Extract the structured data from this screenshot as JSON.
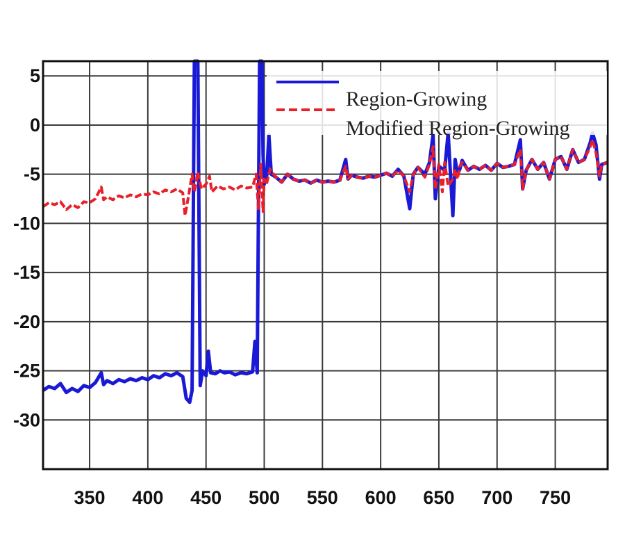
{
  "chart_data": {
    "type": "line",
    "title": "",
    "xlabel": "",
    "ylabel": "",
    "xlim": [
      310,
      795
    ],
    "ylim": [
      -35,
      6.5
    ],
    "grid": true,
    "legend_position": "top-right",
    "x_ticks": [
      350,
      400,
      450,
      500,
      550,
      600,
      650,
      700,
      750
    ],
    "y_ticks": [
      5,
      0,
      -5,
      -10,
      -15,
      -20,
      -25,
      -30
    ],
    "x_tick_labels": [
      "350",
      "400",
      "450",
      "500",
      "550",
      "600",
      "650",
      "700",
      "750"
    ],
    "y_tick_labels": [
      "5",
      "0",
      "-5",
      "-10",
      "-15",
      "-20",
      "-25",
      "-30"
    ],
    "series": [
      {
        "name": "Region-Growing",
        "color": "#1a1ad6",
        "line_style": "solid",
        "points": [
          [
            310,
            -27
          ],
          [
            315,
            -26.6
          ],
          [
            320,
            -26.8
          ],
          [
            325,
            -26.3
          ],
          [
            330,
            -27.2
          ],
          [
            335,
            -26.8
          ],
          [
            340,
            -27.1
          ],
          [
            345,
            -26.5
          ],
          [
            350,
            -26.7
          ],
          [
            355,
            -26.2
          ],
          [
            360,
            -25.2
          ],
          [
            362,
            -26.4
          ],
          [
            365,
            -26
          ],
          [
            370,
            -26.3
          ],
          [
            375,
            -25.9
          ],
          [
            380,
            -26.1
          ],
          [
            385,
            -25.8
          ],
          [
            390,
            -26
          ],
          [
            395,
            -25.7
          ],
          [
            400,
            -25.9
          ],
          [
            405,
            -25.5
          ],
          [
            410,
            -25.7
          ],
          [
            415,
            -25.3
          ],
          [
            420,
            -25.5
          ],
          [
            425,
            -25.2
          ],
          [
            430,
            -25.6
          ],
          [
            433,
            -27.8
          ],
          [
            436,
            -28.2
          ],
          [
            438,
            -27
          ],
          [
            440,
            6.5
          ],
          [
            443,
            6.5
          ],
          [
            445,
            -26.5
          ],
          [
            447,
            -25
          ],
          [
            450,
            -25.5
          ],
          [
            452,
            -23
          ],
          [
            454,
            -25.2
          ],
          [
            458,
            -25.3
          ],
          [
            462,
            -25
          ],
          [
            466,
            -25.2
          ],
          [
            470,
            -25.1
          ],
          [
            475,
            -25.4
          ],
          [
            480,
            -25.2
          ],
          [
            485,
            -25.3
          ],
          [
            490,
            -25.1
          ],
          [
            492,
            -22
          ],
          [
            494,
            -25.2
          ],
          [
            496,
            6.5
          ],
          [
            498,
            6.5
          ],
          [
            499,
            -3
          ],
          [
            500,
            -6
          ],
          [
            502,
            -5.5
          ],
          [
            504,
            -1
          ],
          [
            506,
            -5
          ],
          [
            510,
            -5.3
          ],
          [
            515,
            -5.8
          ],
          [
            520,
            -5
          ],
          [
            525,
            -5.5
          ],
          [
            530,
            -5.7
          ],
          [
            535,
            -5.6
          ],
          [
            540,
            -5.9
          ],
          [
            545,
            -5.6
          ],
          [
            550,
            -5.8
          ],
          [
            555,
            -5.7
          ],
          [
            560,
            -5.8
          ],
          [
            565,
            -5.6
          ],
          [
            570,
            -3.5
          ],
          [
            572,
            -5.5
          ],
          [
            575,
            -5.1
          ],
          [
            580,
            -5.3
          ],
          [
            585,
            -5.4
          ],
          [
            590,
            -5.2
          ],
          [
            595,
            -5.3
          ],
          [
            600,
            -5.1
          ],
          [
            605,
            -4.9
          ],
          [
            610,
            -5.2
          ],
          [
            615,
            -4.5
          ],
          [
            620,
            -5.2
          ],
          [
            625,
            -8.5
          ],
          [
            628,
            -5
          ],
          [
            632,
            -4.3
          ],
          [
            638,
            -5
          ],
          [
            642,
            -3.8
          ],
          [
            645,
            -1
          ],
          [
            647,
            -7.5
          ],
          [
            650,
            -4.2
          ],
          [
            655,
            -4.6
          ],
          [
            658,
            -0.8
          ],
          [
            662,
            -9.2
          ],
          [
            664,
            -3.5
          ],
          [
            666,
            -5
          ],
          [
            668,
            -4.5
          ],
          [
            670,
            -3.6
          ],
          [
            675,
            -4.6
          ],
          [
            680,
            -4.2
          ],
          [
            685,
            -4.5
          ],
          [
            690,
            -4.1
          ],
          [
            695,
            -4.6
          ],
          [
            700,
            -3.9
          ],
          [
            705,
            -4.3
          ],
          [
            710,
            -4.2
          ],
          [
            715,
            -4
          ],
          [
            720,
            -1.5
          ],
          [
            722,
            -6.5
          ],
          [
            725,
            -4.6
          ],
          [
            730,
            -3.5
          ],
          [
            735,
            -4.5
          ],
          [
            740,
            -3.8
          ],
          [
            745,
            -5.5
          ],
          [
            750,
            -3.5
          ],
          [
            755,
            -3.2
          ],
          [
            760,
            -4.5
          ],
          [
            765,
            -2.5
          ],
          [
            770,
            -3.8
          ],
          [
            775,
            -3.5
          ],
          [
            780,
            -1.8
          ],
          [
            782,
            -0.8
          ],
          [
            785,
            -2
          ],
          [
            788,
            -5.5
          ],
          [
            790,
            -4
          ],
          [
            795,
            -3.8
          ]
        ]
      },
      {
        "name": "Modified Region-Growing",
        "color": "#e8202a",
        "line_style": "dashed",
        "points": [
          [
            310,
            -8.3
          ],
          [
            315,
            -7.9
          ],
          [
            320,
            -8.1
          ],
          [
            325,
            -7.8
          ],
          [
            330,
            -8.6
          ],
          [
            335,
            -8.1
          ],
          [
            340,
            -8.4
          ],
          [
            345,
            -7.8
          ],
          [
            350,
            -7.9
          ],
          [
            355,
            -7.5
          ],
          [
            360,
            -6.3
          ],
          [
            362,
            -7.6
          ],
          [
            365,
            -7.3
          ],
          [
            370,
            -7.6
          ],
          [
            375,
            -7.2
          ],
          [
            380,
            -7.4
          ],
          [
            385,
            -7.1
          ],
          [
            390,
            -7.3
          ],
          [
            395,
            -7
          ],
          [
            400,
            -7.1
          ],
          [
            405,
            -6.8
          ],
          [
            410,
            -7
          ],
          [
            415,
            -6.6
          ],
          [
            420,
            -6.8
          ],
          [
            425,
            -6.5
          ],
          [
            430,
            -6.9
          ],
          [
            432,
            -9.2
          ],
          [
            435,
            -7.2
          ],
          [
            438,
            -5
          ],
          [
            440,
            -6.8
          ],
          [
            443,
            -4.8
          ],
          [
            446,
            -6.5
          ],
          [
            450,
            -6
          ],
          [
            453,
            -5.2
          ],
          [
            455,
            -6.8
          ],
          [
            460,
            -6.2
          ],
          [
            465,
            -6.5
          ],
          [
            470,
            -6.3
          ],
          [
            475,
            -6.6
          ],
          [
            480,
            -6.2
          ],
          [
            485,
            -6.4
          ],
          [
            490,
            -6.3
          ],
          [
            493,
            -5
          ],
          [
            495,
            -8.5
          ],
          [
            497,
            -4
          ],
          [
            499,
            -8.8
          ],
          [
            500,
            -5.5
          ],
          [
            502,
            -6
          ],
          [
            505,
            -4.5
          ],
          [
            510,
            -5.3
          ],
          [
            515,
            -5.8
          ],
          [
            520,
            -5
          ],
          [
            525,
            -5.5
          ],
          [
            530,
            -5.7
          ],
          [
            535,
            -5.6
          ],
          [
            540,
            -5.9
          ],
          [
            545,
            -5.6
          ],
          [
            550,
            -5.8
          ],
          [
            555,
            -5.7
          ],
          [
            560,
            -5.8
          ],
          [
            565,
            -5.6
          ],
          [
            570,
            -4.2
          ],
          [
            572,
            -5.5
          ],
          [
            575,
            -5.1
          ],
          [
            580,
            -5.3
          ],
          [
            585,
            -5.4
          ],
          [
            590,
            -5.2
          ],
          [
            595,
            -5.3
          ],
          [
            600,
            -5.1
          ],
          [
            605,
            -4.9
          ],
          [
            610,
            -5.2
          ],
          [
            615,
            -4.6
          ],
          [
            620,
            -5.2
          ],
          [
            625,
            -6.8
          ],
          [
            628,
            -5
          ],
          [
            632,
            -4.3
          ],
          [
            638,
            -5.3
          ],
          [
            642,
            -4
          ],
          [
            645,
            -2.2
          ],
          [
            647,
            -6.5
          ],
          [
            650,
            -4
          ],
          [
            653,
            -6.8
          ],
          [
            655,
            -3.8
          ],
          [
            658,
            -6.2
          ],
          [
            662,
            -5.5
          ],
          [
            664,
            -4.5
          ],
          [
            666,
            -5.5
          ],
          [
            668,
            -4.2
          ],
          [
            670,
            -3.8
          ],
          [
            675,
            -4.6
          ],
          [
            680,
            -4.2
          ],
          [
            685,
            -4.5
          ],
          [
            690,
            -4.1
          ],
          [
            695,
            -4.6
          ],
          [
            700,
            -3.9
          ],
          [
            705,
            -4.3
          ],
          [
            710,
            -4.2
          ],
          [
            715,
            -4
          ],
          [
            720,
            -2.5
          ],
          [
            722,
            -6.5
          ],
          [
            725,
            -4.6
          ],
          [
            730,
            -3.5
          ],
          [
            735,
            -4.5
          ],
          [
            740,
            -3.8
          ],
          [
            745,
            -5.5
          ],
          [
            750,
            -3.5
          ],
          [
            755,
            -3.2
          ],
          [
            760,
            -4.5
          ],
          [
            765,
            -2.5
          ],
          [
            770,
            -3.8
          ],
          [
            775,
            -3.5
          ],
          [
            780,
            -2.2
          ],
          [
            782,
            -1.5
          ],
          [
            785,
            -2.8
          ],
          [
            788,
            -5.2
          ],
          [
            790,
            -4
          ],
          [
            795,
            -3.8
          ]
        ]
      }
    ]
  }
}
